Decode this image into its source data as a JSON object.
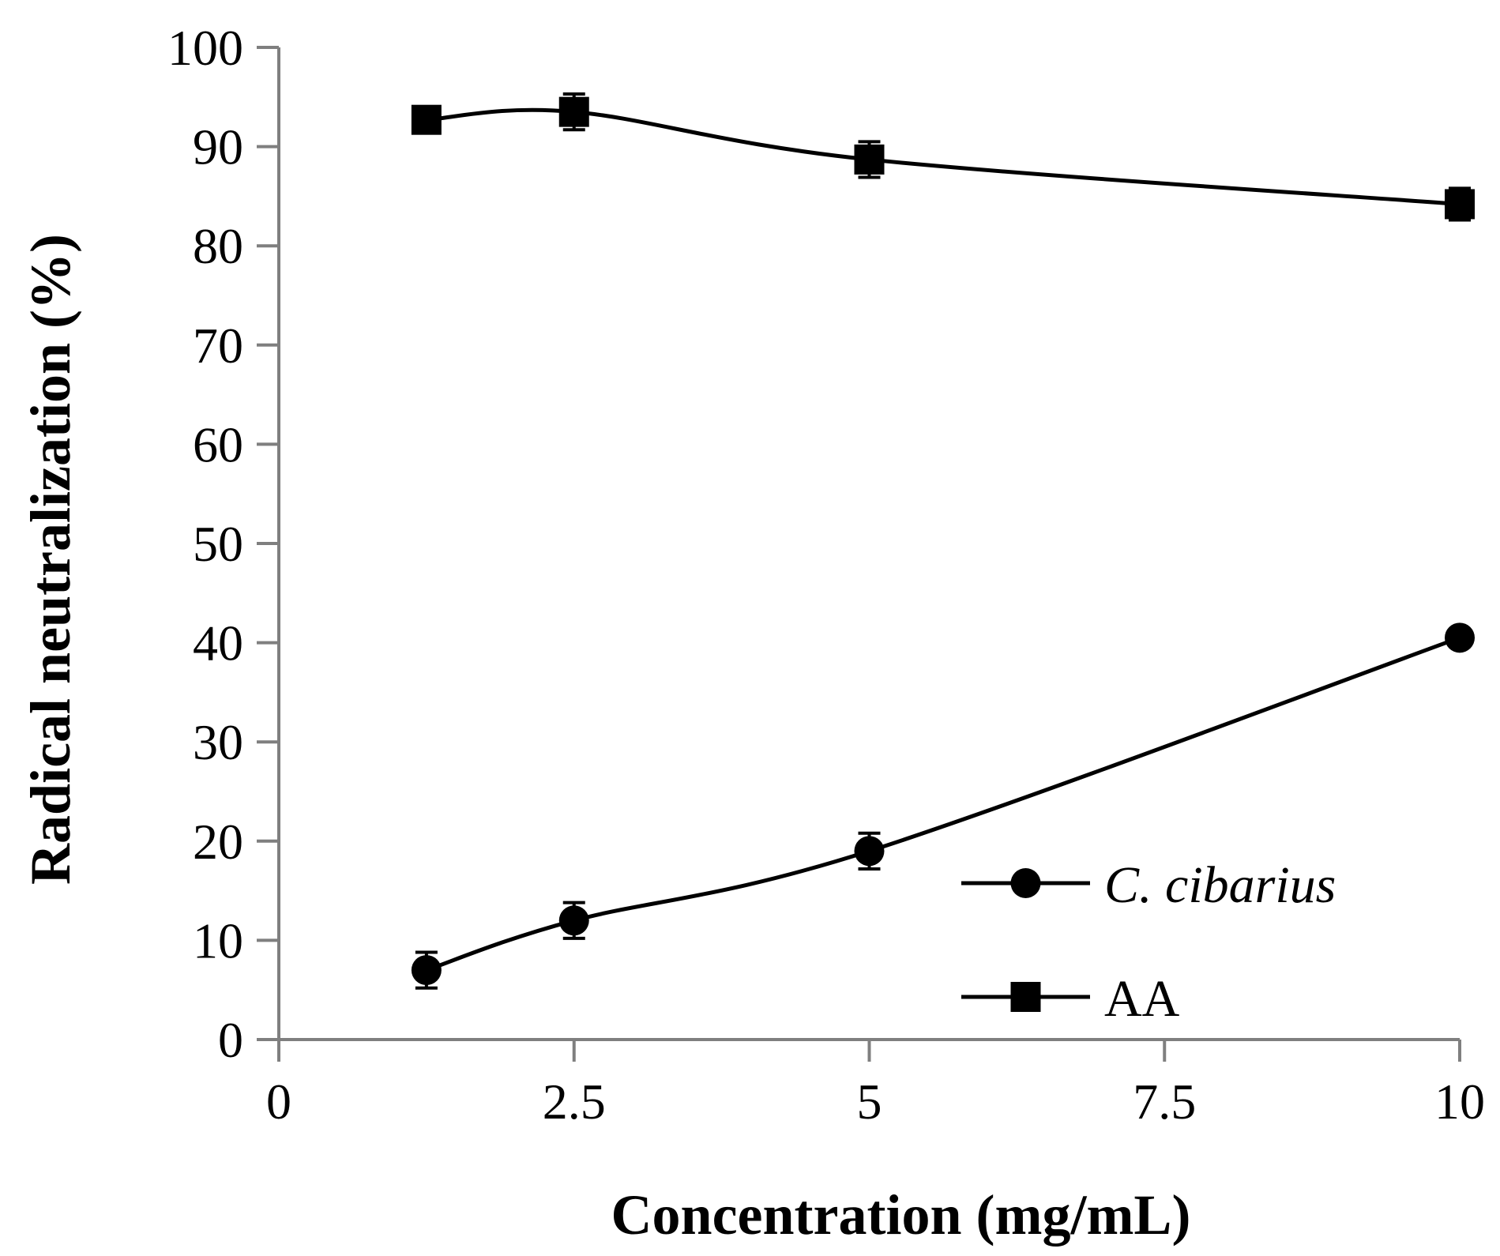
{
  "chart_data": {
    "type": "line",
    "title": "",
    "xlabel": "Concentration (mg/mL)",
    "ylabel": "Radical neutralization (%)",
    "xlim": [
      0,
      10
    ],
    "ylim": [
      0,
      100
    ],
    "xticks": [
      0,
      2.5,
      5,
      7.5,
      10
    ],
    "xtick_labels": [
      "0",
      "2.5",
      "5",
      "7.5",
      "10"
    ],
    "yticks": [
      0,
      10,
      20,
      30,
      40,
      50,
      60,
      70,
      80,
      90,
      100
    ],
    "ytick_labels": [
      "0",
      "10",
      "20",
      "30",
      "40",
      "50",
      "60",
      "70",
      "80",
      "90",
      "100"
    ],
    "grid": false,
    "legend_position": "bottom-right",
    "series": [
      {
        "name": "C. cibarius",
        "marker": "circle",
        "italic": true,
        "x": [
          1.25,
          2.5,
          5,
          10
        ],
        "y": [
          7,
          12,
          19,
          40.5
        ],
        "err": [
          1.8,
          1.8,
          1.8,
          0.6
        ]
      },
      {
        "name": "AA",
        "marker": "square",
        "italic": false,
        "x": [
          1.25,
          2.5,
          5,
          10
        ],
        "y": [
          92.7,
          93.5,
          88.7,
          84.2
        ],
        "err": [
          0.3,
          1.8,
          1.8,
          1.6
        ]
      }
    ]
  }
}
